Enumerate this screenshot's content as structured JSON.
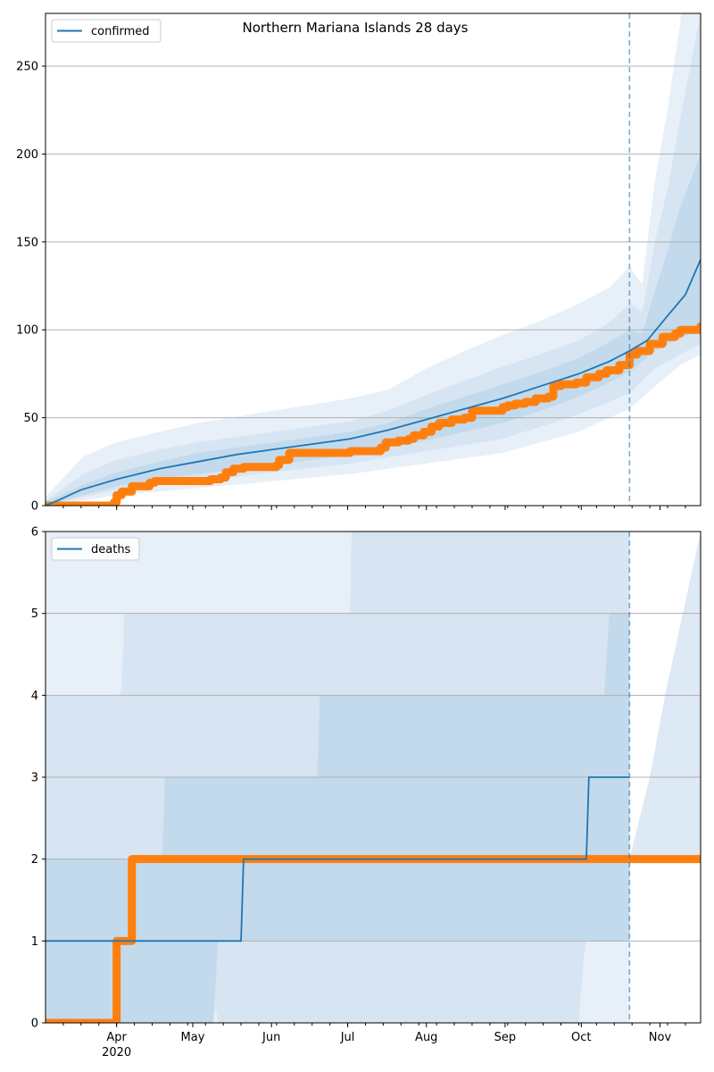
{
  "figure": {
    "title": "Northern Mariana Islands 28 days"
  },
  "colors": {
    "model": "#1f77b4",
    "observed": "#ff7f0e",
    "grid": "#b0b0b0",
    "axis": "#000000"
  },
  "chart_data": [
    {
      "type": "line",
      "title": "Northern Mariana Islands 28 days",
      "legend": {
        "label": "confirmed",
        "location": "top-left"
      },
      "xlim": [
        0,
        258
      ],
      "ylim": [
        0,
        280
      ],
      "yticks": [
        0,
        50,
        100,
        150,
        200,
        250
      ],
      "xticks": [
        {
          "x": 28,
          "label": "Apr",
          "sublabel": "2020"
        },
        {
          "x": 58,
          "label": "May"
        },
        {
          "x": 89,
          "label": "Jun"
        },
        {
          "x": 119,
          "label": "Jul"
        },
        {
          "x": 150,
          "label": "Aug"
        },
        {
          "x": 181,
          "label": "Sep"
        },
        {
          "x": 211,
          "label": "Oct"
        },
        {
          "x": 242,
          "label": "Nov"
        }
      ],
      "forecast_start_x": 230,
      "model_median": [
        [
          0,
          0
        ],
        [
          5,
          3
        ],
        [
          14,
          9
        ],
        [
          28,
          15
        ],
        [
          45,
          21
        ],
        [
          60,
          25
        ],
        [
          75,
          29
        ],
        [
          90,
          32
        ],
        [
          105,
          35
        ],
        [
          120,
          38
        ],
        [
          135,
          43
        ],
        [
          150,
          49
        ],
        [
          165,
          55
        ],
        [
          180,
          61
        ],
        [
          195,
          68
        ],
        [
          210,
          75
        ],
        [
          222,
          82
        ],
        [
          230,
          88
        ],
        [
          237,
          94
        ],
        [
          245,
          108
        ],
        [
          252,
          120
        ],
        [
          258,
          140
        ]
      ],
      "bands": [
        {
          "lower": [
            [
              0,
              0
            ],
            [
              15,
              3
            ],
            [
              28,
              6
            ],
            [
              60,
              10
            ],
            [
              90,
              14
            ],
            [
              120,
              18
            ],
            [
              150,
              24
            ],
            [
              180,
              30
            ],
            [
              195,
              36
            ],
            [
              210,
              42
            ],
            [
              222,
              50
            ],
            [
              230,
              55
            ],
            [
              240,
              68
            ],
            [
              250,
              80
            ],
            [
              258,
              86
            ]
          ],
          "upper": [
            [
              0,
              5
            ],
            [
              15,
              28
            ],
            [
              28,
              36
            ],
            [
              45,
              42
            ],
            [
              60,
              47
            ],
            [
              90,
              54
            ],
            [
              120,
              61
            ],
            [
              135,
              66
            ],
            [
              150,
              78
            ],
            [
              165,
              88
            ],
            [
              180,
              97
            ],
            [
              195,
              105
            ],
            [
              210,
              115
            ],
            [
              222,
              124
            ],
            [
              230,
              136
            ],
            [
              235,
              126
            ],
            [
              240,
              185
            ],
            [
              245,
              225
            ],
            [
              250,
              275
            ],
            [
              258,
              400
            ]
          ]
        },
        {
          "lower": [
            [
              0,
              0
            ],
            [
              15,
              5
            ],
            [
              28,
              9
            ],
            [
              60,
              14
            ],
            [
              90,
              19
            ],
            [
              120,
              24
            ],
            [
              150,
              31
            ],
            [
              180,
              38
            ],
            [
              195,
              45
            ],
            [
              210,
              52
            ],
            [
              222,
              59
            ],
            [
              230,
              64
            ],
            [
              240,
              78
            ],
            [
              250,
              86
            ],
            [
              258,
              92
            ]
          ],
          "upper": [
            [
              0,
              3
            ],
            [
              15,
              18
            ],
            [
              28,
              26
            ],
            [
              45,
              32
            ],
            [
              60,
              36
            ],
            [
              90,
              42
            ],
            [
              120,
              48
            ],
            [
              135,
              54
            ],
            [
              150,
              63
            ],
            [
              165,
              71
            ],
            [
              180,
              79
            ],
            [
              195,
              86
            ],
            [
              210,
              94
            ],
            [
              222,
              104
            ],
            [
              230,
              115
            ],
            [
              235,
              110
            ],
            [
              240,
              150
            ],
            [
              245,
              180
            ],
            [
              250,
              220
            ],
            [
              258,
              280
            ]
          ]
        },
        {
          "lower": [
            [
              0,
              0
            ],
            [
              15,
              6
            ],
            [
              28,
              11
            ],
            [
              60,
              18
            ],
            [
              90,
              23
            ],
            [
              120,
              29
            ],
            [
              150,
              37
            ],
            [
              180,
              47
            ],
            [
              195,
              54
            ],
            [
              210,
              62
            ],
            [
              222,
              70
            ],
            [
              230,
              76
            ],
            [
              240,
              88
            ],
            [
              250,
              95
            ],
            [
              258,
              100
            ]
          ],
          "upper": [
            [
              0,
              2
            ],
            [
              15,
              12
            ],
            [
              28,
              19
            ],
            [
              45,
              25
            ],
            [
              60,
              30
            ],
            [
              90,
              36
            ],
            [
              120,
              42
            ],
            [
              135,
              47
            ],
            [
              150,
              55
            ],
            [
              165,
              62
            ],
            [
              180,
              69
            ],
            [
              195,
              76
            ],
            [
              210,
              84
            ],
            [
              222,
              93
            ],
            [
              230,
              100
            ],
            [
              235,
              98
            ],
            [
              240,
              122
            ],
            [
              245,
              145
            ],
            [
              250,
              170
            ],
            [
              258,
              200
            ]
          ]
        }
      ],
      "observed_steps": [
        [
          0,
          0
        ],
        [
          27,
          0
        ],
        [
          27,
          2
        ],
        [
          28,
          6
        ],
        [
          30,
          8
        ],
        [
          34,
          11
        ],
        [
          41,
          13
        ],
        [
          43,
          14
        ],
        [
          63,
          14
        ],
        [
          65,
          15
        ],
        [
          69,
          16
        ],
        [
          71,
          19
        ],
        [
          74,
          21
        ],
        [
          78,
          22
        ],
        [
          91,
          23
        ],
        [
          92,
          26
        ],
        [
          96,
          30
        ],
        [
          119,
          30
        ],
        [
          120,
          31
        ],
        [
          132,
          33
        ],
        [
          134,
          36
        ],
        [
          139,
          37
        ],
        [
          143,
          38
        ],
        [
          145,
          40
        ],
        [
          149,
          42
        ],
        [
          152,
          45
        ],
        [
          155,
          47
        ],
        [
          160,
          49
        ],
        [
          165,
          50
        ],
        [
          168,
          54
        ],
        [
          180,
          56
        ],
        [
          182,
          57
        ],
        [
          185,
          58
        ],
        [
          189,
          59
        ],
        [
          193,
          61
        ],
        [
          198,
          62
        ],
        [
          200,
          68
        ],
        [
          203,
          69
        ],
        [
          209,
          70
        ],
        [
          213,
          73
        ],
        [
          218,
          75
        ],
        [
          221,
          77
        ],
        [
          226,
          80
        ],
        [
          230,
          86
        ],
        [
          233,
          88
        ],
        [
          238,
          92
        ],
        [
          243,
          96
        ],
        [
          248,
          98
        ],
        [
          250,
          100
        ],
        [
          257,
          100
        ],
        [
          258,
          102
        ]
      ]
    },
    {
      "type": "line",
      "legend": {
        "label": "deaths",
        "location": "top-left"
      },
      "xlim": [
        0,
        258
      ],
      "ylim": [
        0,
        6
      ],
      "yticks": [
        0,
        1,
        2,
        3,
        4,
        5,
        6
      ],
      "xticks": [
        {
          "x": 28,
          "label": "Apr",
          "sublabel": "2020"
        },
        {
          "x": 58,
          "label": "May"
        },
        {
          "x": 89,
          "label": "Jun"
        },
        {
          "x": 119,
          "label": "Jul"
        },
        {
          "x": 150,
          "label": "Aug"
        },
        {
          "x": 181,
          "label": "Sep"
        },
        {
          "x": 211,
          "label": "Oct"
        },
        {
          "x": 242,
          "label": "Nov"
        }
      ],
      "forecast_start_x": 230,
      "model_median": [
        [
          0,
          1
        ],
        [
          77,
          1
        ],
        [
          78,
          2
        ],
        [
          213,
          2
        ],
        [
          214,
          3
        ],
        [
          230,
          3
        ]
      ],
      "bands": [
        {
          "lower": [
            [
              0,
              0
            ],
            [
              230,
              0
            ]
          ],
          "upper": [
            [
              0,
              7
            ],
            [
              230,
              7
            ]
          ]
        },
        {
          "lower": [
            [
              0,
              0
            ],
            [
              66,
              0
            ],
            [
              67,
              0.2
            ],
            [
              68,
              0
            ],
            [
              210,
              0
            ],
            [
              212,
              0.8
            ],
            [
              213,
              1
            ],
            [
              230,
              1
            ]
          ],
          "upper": [
            [
              0,
              4
            ],
            [
              29,
              4
            ],
            [
              30,
              4.1
            ],
            [
              31,
              5
            ],
            [
              120,
              5
            ],
            [
              121,
              7
            ],
            [
              230,
              7
            ]
          ]
        },
        {
          "lower": [
            [
              0,
              0
            ],
            [
              66,
              0
            ],
            [
              68,
              1
            ],
            [
              230,
              1
            ]
          ],
          "upper": [
            [
              0,
              2
            ],
            [
              46,
              2
            ],
            [
              47,
              3
            ],
            [
              107,
              3
            ],
            [
              108,
              4
            ],
            [
              220,
              4
            ],
            [
              222,
              5
            ],
            [
              230,
              5
            ]
          ]
        },
        {
          "lower": [
            [
              230,
              2
            ],
            [
              258,
              2
            ]
          ],
          "upper": [
            [
              230,
              2
            ],
            [
              238,
              3
            ],
            [
              244,
              4
            ],
            [
              258,
              6
            ]
          ]
        }
      ],
      "observed_steps": [
        [
          0,
          0
        ],
        [
          27,
          0
        ],
        [
          28,
          1
        ],
        [
          34,
          1
        ],
        [
          34,
          2
        ],
        [
          258,
          2
        ]
      ]
    }
  ]
}
